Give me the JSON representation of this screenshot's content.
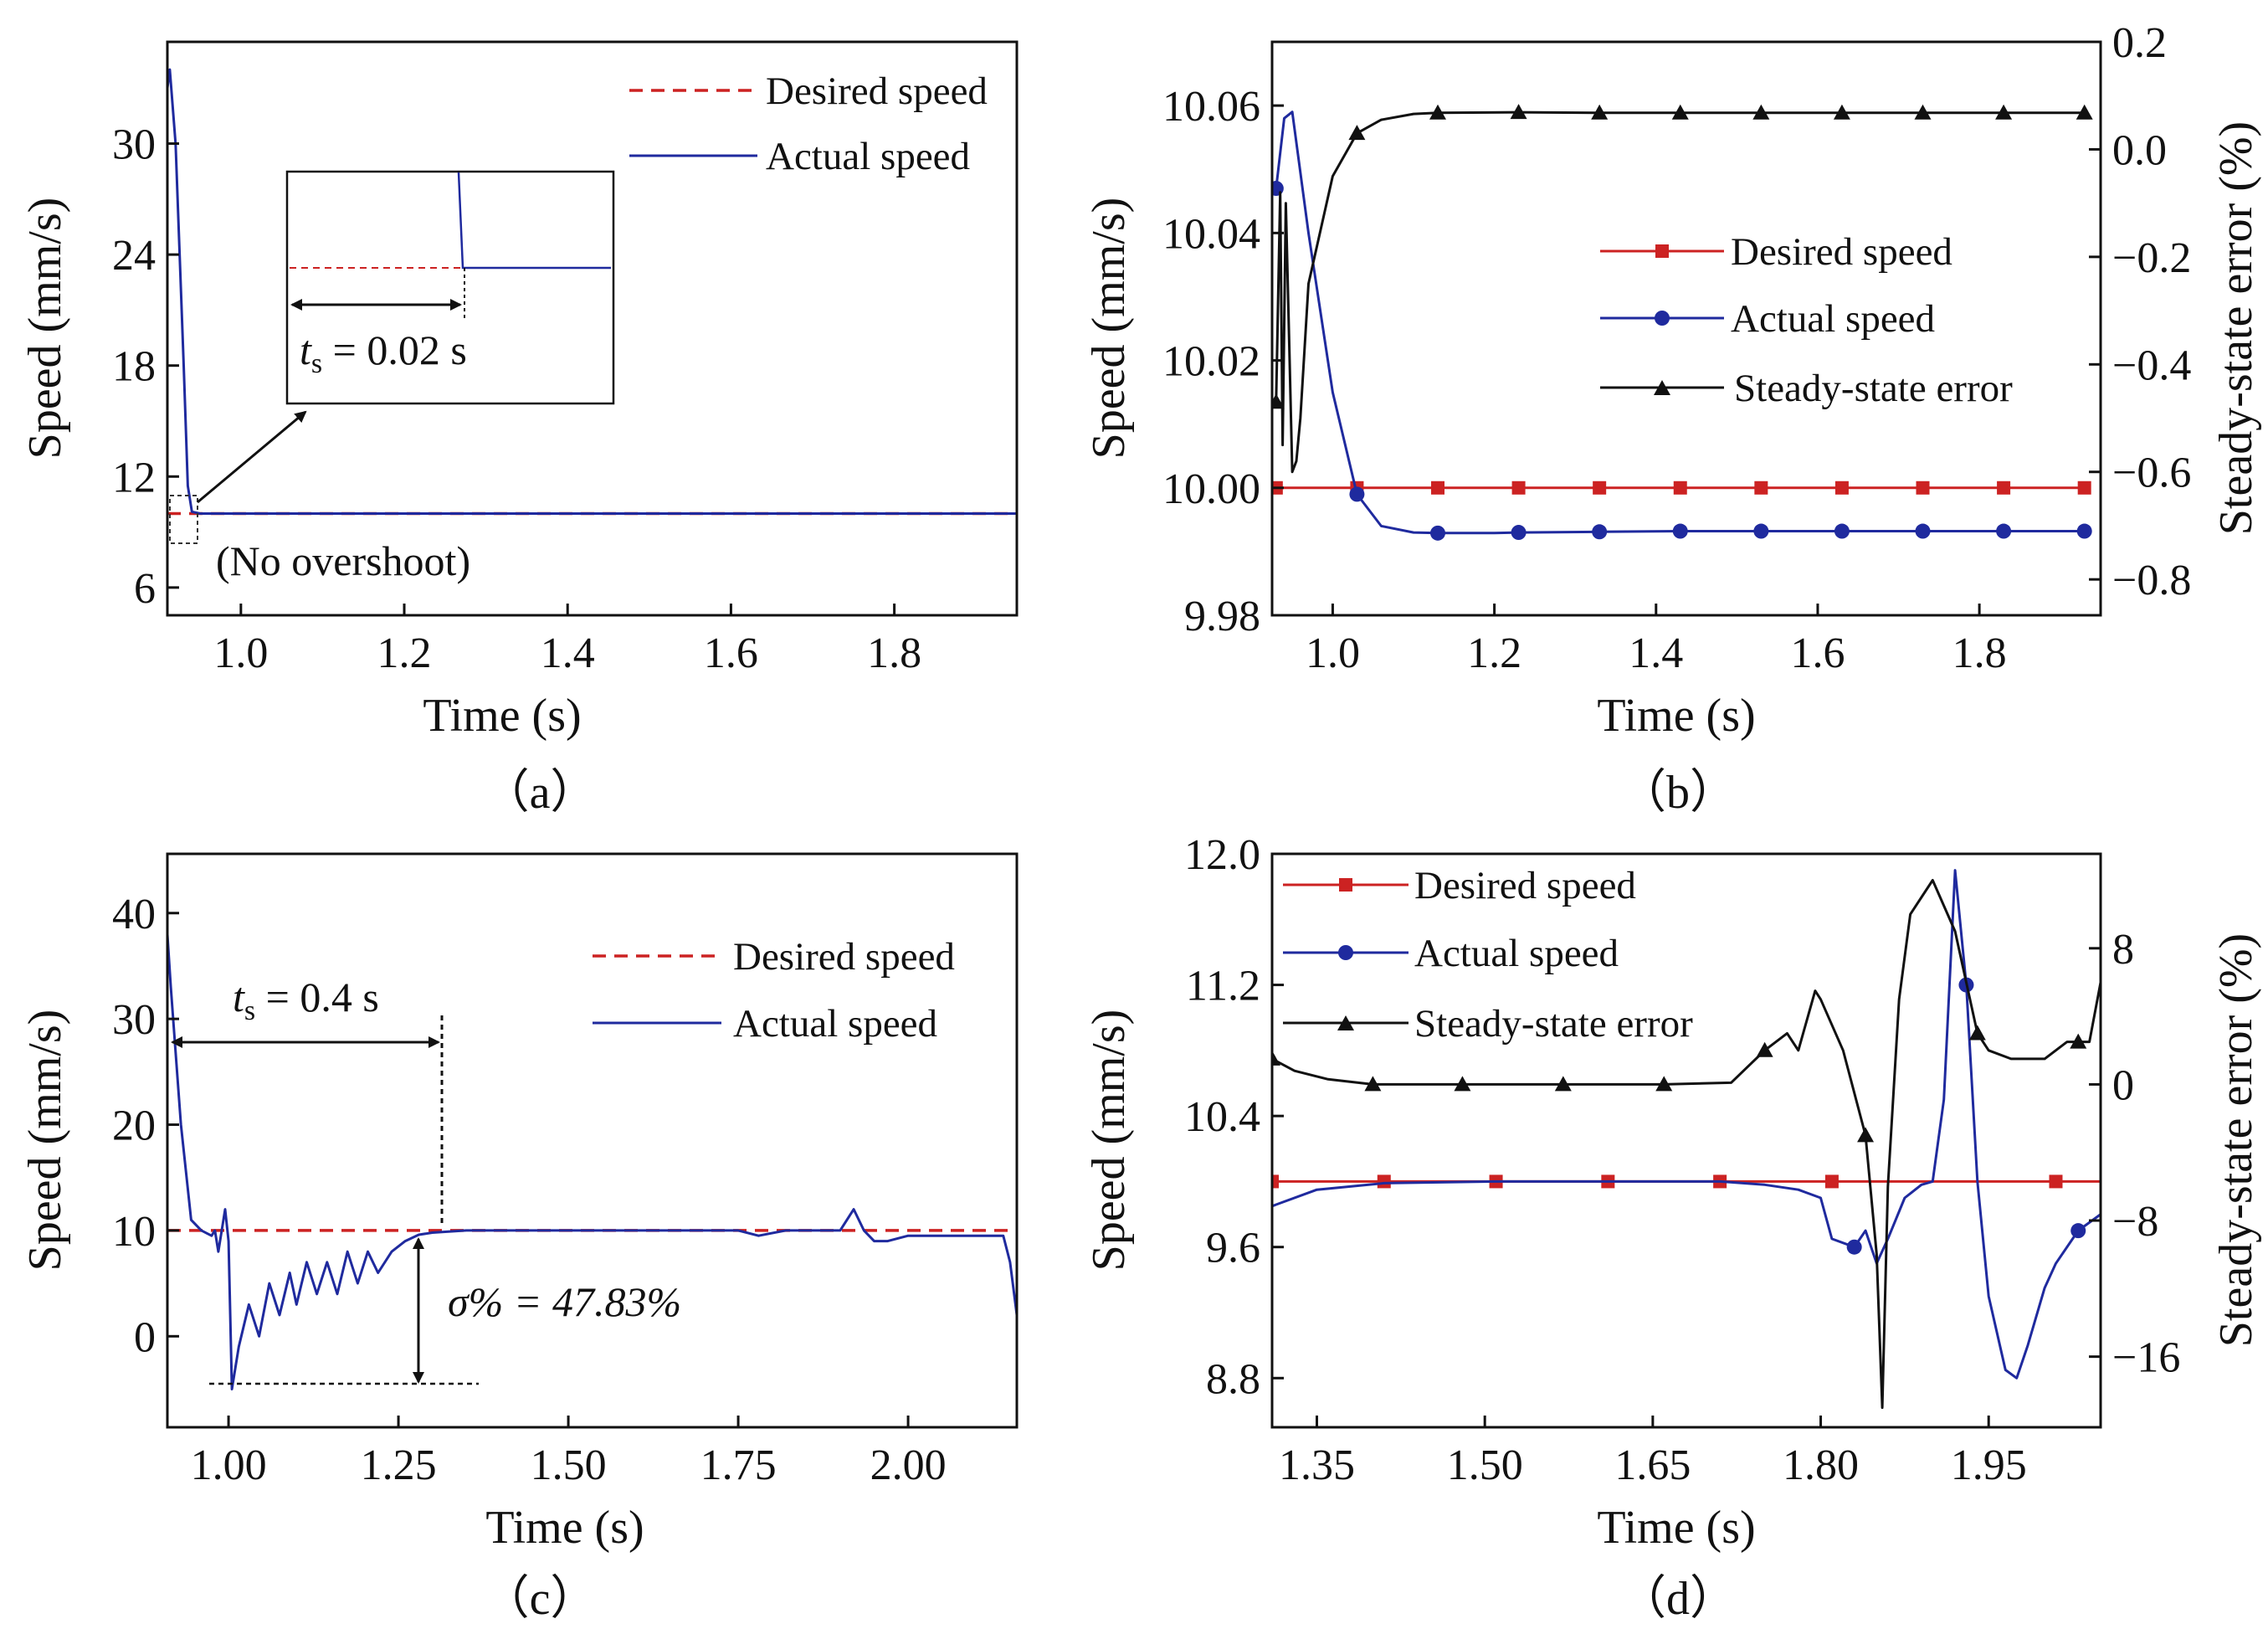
{
  "colors": {
    "desired": "#cc2222",
    "actual": "#1f2a9e",
    "error": "#111111",
    "axis": "#111111"
  },
  "chart_data": [
    {
      "id": "a",
      "type": "line",
      "caption": "（a）",
      "xlabel": "Time (s)",
      "ylabel": "Speed (mm/s)",
      "xlim": [
        0.91,
        1.95
      ],
      "ylim": [
        4.5,
        35.5
      ],
      "xticks": [
        1.0,
        1.2,
        1.4,
        1.6,
        1.8
      ],
      "xtick_labels": [
        "1.0",
        "1.2",
        "1.4",
        "1.6",
        "1.8"
      ],
      "yticks": [
        6,
        12,
        18,
        24,
        30
      ],
      "ytick_labels": [
        "6",
        "12",
        "18",
        "24",
        "30"
      ],
      "legend": [
        "Desired speed",
        "Actual speed"
      ],
      "series": [
        {
          "name": "Desired speed",
          "style": "dashed",
          "x": [
            0.91,
            1.95
          ],
          "y": [
            10,
            10
          ]
        },
        {
          "name": "Actual speed",
          "style": "solid",
          "x": [
            0.91,
            0.913,
            0.92,
            0.93,
            0.935,
            0.94,
            0.95,
            1.0,
            1.95
          ],
          "y": [
            33,
            34,
            30,
            18,
            11.5,
            10.1,
            10.0,
            10.0,
            10.0
          ]
        }
      ],
      "annotations": {
        "settling_label": "t",
        "settling_sub": "s",
        "settling_text": " = 0.02 s",
        "overshoot_note": "(No overshoot)"
      }
    },
    {
      "id": "b",
      "type": "line",
      "caption": "（b）",
      "xlabel": "Time (s)",
      "ylabel": "Speed (mm/s)",
      "ylabel_right": "Steady-state error (%)",
      "xlim": [
        0.925,
        1.95
      ],
      "ylim": [
        9.98,
        10.07
      ],
      "ylim_right": [
        -0.8667,
        0.2
      ],
      "xticks": [
        1.0,
        1.2,
        1.4,
        1.6,
        1.8
      ],
      "xtick_labels": [
        "1.0",
        "1.2",
        "1.4",
        "1.6",
        "1.8"
      ],
      "yticks": [
        9.98,
        10.0,
        10.02,
        10.04,
        10.06
      ],
      "ytick_labels": [
        "9.98",
        "10.00",
        "10.02",
        "10.04",
        "10.06"
      ],
      "yticks_right": [
        -0.8,
        -0.6,
        -0.4,
        -0.2,
        0.0,
        0.2
      ],
      "ytick_labels_right": [
        "-0.8",
        "-0.6",
        "-0.4",
        "-0.2",
        "0.0",
        "0.2"
      ],
      "legend": [
        "Desired speed",
        "Actual speed",
        "Steady-state error"
      ],
      "series": [
        {
          "name": "Desired speed",
          "axis": "left",
          "marker": "square",
          "x": [
            0.93,
            1.03,
            1.13,
            1.23,
            1.33,
            1.43,
            1.53,
            1.63,
            1.73,
            1.83,
            1.93
          ],
          "y": [
            10,
            10,
            10,
            10,
            10,
            10,
            10,
            10,
            10,
            10,
            10
          ]
        },
        {
          "name": "Actual speed",
          "axis": "left",
          "marker": "circle",
          "x": [
            0.93,
            0.94,
            0.95,
            0.97,
            1.0,
            1.03,
            1.06,
            1.1,
            1.13,
            1.2,
            1.23,
            1.33,
            1.43,
            1.53,
            1.63,
            1.73,
            1.83,
            1.93
          ],
          "y": [
            10.047,
            10.058,
            10.059,
            10.04,
            10.015,
            9.999,
            9.994,
            9.993,
            9.9929,
            9.9929,
            9.993,
            9.9931,
            9.9932,
            9.9932,
            9.9932,
            9.9932,
            9.9932,
            9.9932
          ]
        },
        {
          "name": "Steady-state error",
          "axis": "right",
          "marker": "triangle",
          "x": [
            0.93,
            0.935,
            0.938,
            0.942,
            0.946,
            0.95,
            0.955,
            0.96,
            0.97,
            1.0,
            1.03,
            1.06,
            1.1,
            1.13,
            1.23,
            1.33,
            1.43,
            1.53,
            1.63,
            1.73,
            1.83,
            1.93
          ],
          "y": [
            -0.47,
            -0.08,
            -0.55,
            -0.1,
            -0.35,
            -0.6,
            -0.58,
            -0.5,
            -0.25,
            -0.05,
            0.03,
            0.055,
            0.066,
            0.068,
            0.069,
            0.068,
            0.068,
            0.068,
            0.068,
            0.068,
            0.068,
            0.068
          ]
        }
      ]
    },
    {
      "id": "c",
      "type": "line",
      "caption": "（c）",
      "xlabel": "Time (s)",
      "ylabel": "Speed (mm/s)",
      "xlim": [
        0.91,
        2.16
      ],
      "ylim": [
        -8.6,
        45.6
      ],
      "xticks": [
        1.0,
        1.25,
        1.5,
        1.75,
        2.0
      ],
      "xtick_labels": [
        "1.00",
        "1.25",
        "1.50",
        "1.75",
        "2.00"
      ],
      "yticks": [
        0,
        10,
        20,
        30,
        40
      ],
      "ytick_labels": [
        "0",
        "10",
        "20",
        "30",
        "40"
      ],
      "legend": [
        "Desired speed",
        "Actual speed"
      ],
      "series": [
        {
          "name": "Desired speed",
          "style": "dashed",
          "x": [
            0.91,
            2.16
          ],
          "y": [
            10,
            10
          ]
        },
        {
          "name": "Actual speed",
          "style": "solid",
          "x": [
            0.91,
            0.915,
            0.93,
            0.945,
            0.96,
            0.975,
            0.98,
            0.985,
            0.995,
            1.0,
            1.005,
            1.015,
            1.03,
            1.045,
            1.06,
            1.075,
            1.09,
            1.1,
            1.115,
            1.13,
            1.145,
            1.16,
            1.175,
            1.19,
            1.205,
            1.22,
            1.24,
            1.26,
            1.28,
            1.3,
            1.35,
            1.5,
            1.75,
            1.78,
            1.82,
            1.9,
            1.92,
            1.935,
            1.95,
            1.97,
            2.0,
            2.1,
            2.14,
            2.15,
            2.16
          ],
          "y": [
            38,
            33,
            20,
            11,
            10,
            9.5,
            10,
            8,
            12,
            9,
            -5,
            -1,
            3,
            0,
            5,
            2,
            6,
            3,
            7,
            4,
            7,
            4,
            8,
            5,
            8,
            6,
            8,
            9,
            9.6,
            9.8,
            10,
            10,
            10,
            9.5,
            10,
            10,
            12,
            10,
            9,
            9,
            9.5,
            9.5,
            9.5,
            7,
            2
          ]
        }
      ],
      "annotations": {
        "settling_label": "t",
        "settling_sub": "s",
        "settling_text": " = 0.4 s",
        "overshoot_text": "σ% = 47.83%"
      }
    },
    {
      "id": "d",
      "type": "line",
      "caption": "（d）",
      "xlabel": "Time (s)",
      "ylabel": "Speed (mm/s)",
      "ylabel_right": "Steady-state error (%)",
      "xlim": [
        1.31,
        2.05
      ],
      "ylim": [
        8.5,
        12.0
      ],
      "ylim_right": [
        -20.15,
        13.55
      ],
      "xticks": [
        1.35,
        1.5,
        1.65,
        1.8,
        1.95
      ],
      "xtick_labels": [
        "1.35",
        "1.50",
        "1.65",
        "1.80",
        "1.95"
      ],
      "yticks": [
        8.8,
        9.6,
        10.4,
        11.2,
        12.0
      ],
      "ytick_labels": [
        "8.8",
        "9.6",
        "10.4",
        "11.2",
        "12.0"
      ],
      "yticks_right": [
        -16,
        -8,
        0,
        8
      ],
      "ytick_labels_right": [
        "-16",
        "-8",
        "0",
        "8"
      ],
      "legend": [
        "Desired speed",
        "Actual speed",
        "Steady-state error"
      ],
      "series": [
        {
          "name": "Desired speed",
          "axis": "left",
          "marker": "square",
          "x": [
            1.31,
            1.41,
            1.51,
            1.61,
            1.71,
            1.81,
            1.91,
            2.01,
            2.05
          ],
          "y": [
            10,
            10,
            10,
            10,
            10,
            10,
            10,
            10,
            10
          ],
          "marker_x": [
            1.31,
            1.41,
            1.51,
            1.61,
            1.71,
            1.81,
            2.01
          ]
        },
        {
          "name": "Actual speed",
          "axis": "left",
          "marker": "circle",
          "x": [
            1.31,
            1.35,
            1.41,
            1.51,
            1.61,
            1.71,
            1.75,
            1.78,
            1.8,
            1.81,
            1.83,
            1.84,
            1.85,
            1.86,
            1.875,
            1.89,
            1.9,
            1.91,
            1.92,
            1.93,
            1.94,
            1.95,
            1.965,
            1.975,
            1.985,
            2.0,
            2.01,
            2.03,
            2.05
          ],
          "y": [
            9.85,
            9.95,
            9.99,
            10.0,
            10.0,
            10.0,
            9.98,
            9.95,
            9.9,
            9.65,
            9.6,
            9.7,
            9.5,
            9.65,
            9.9,
            9.98,
            10.0,
            10.5,
            11.9,
            11.2,
            10.0,
            9.3,
            8.85,
            8.8,
            9.0,
            9.35,
            9.5,
            9.7,
            9.8
          ]
        },
        {
          "name": "Steady-state error",
          "axis": "right",
          "marker": "triangle",
          "x": [
            1.31,
            1.33,
            1.36,
            1.4,
            1.48,
            1.57,
            1.66,
            1.72,
            1.75,
            1.77,
            1.78,
            1.795,
            1.8,
            1.81,
            1.82,
            1.84,
            1.85,
            1.855,
            1.86,
            1.87,
            1.88,
            1.9,
            1.92,
            1.94,
            1.95,
            1.97,
            2.0,
            2.02,
            2.04,
            2.05
          ],
          "y": [
            1.5,
            0.8,
            0.3,
            0.0,
            0.0,
            0.0,
            0.0,
            0.1,
            2.0,
            3.0,
            2.0,
            5.5,
            5.0,
            3.5,
            2.0,
            -3.0,
            -10.0,
            -19.0,
            -6.0,
            5.0,
            10.0,
            12.0,
            9.0,
            3.0,
            2.0,
            1.5,
            1.5,
            2.5,
            2.5,
            6.0
          ],
          "marker_x": [
            1.31,
            1.4,
            1.48,
            1.57,
            1.66,
            1.75,
            1.84,
            1.94,
            2.03
          ]
        }
      ]
    }
  ]
}
